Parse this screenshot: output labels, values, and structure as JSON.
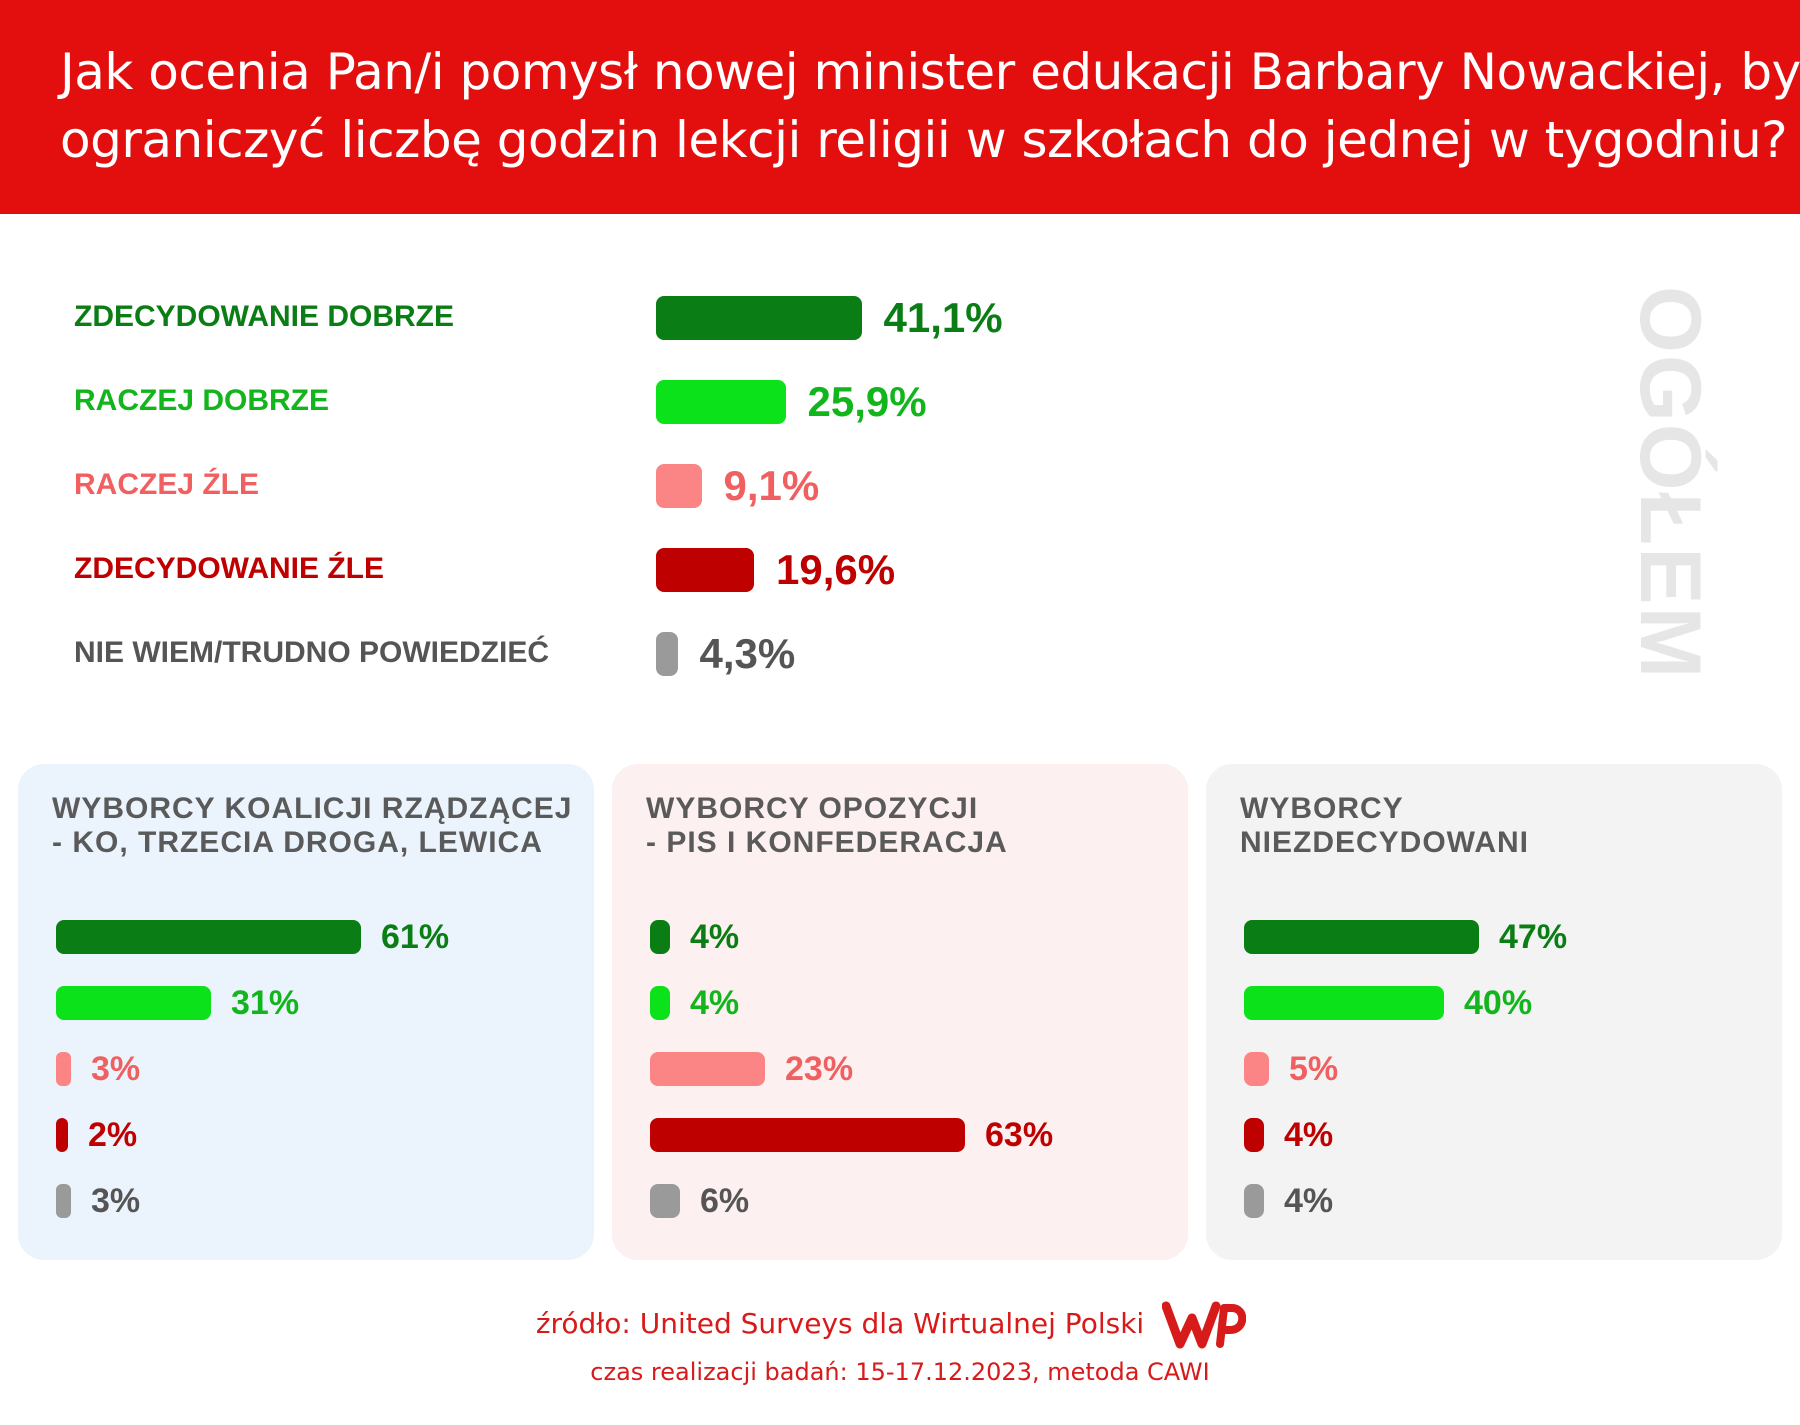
{
  "header": {
    "title_line1": "Jak ocenia Pan/i pomysł nowej minister edukacji Barbary Nowackiej, by",
    "title_line2": "ograniczyć liczbę godzin lekcji religii w szkołach do jednej w tygodniu?"
  },
  "side_label": "OGÓŁEM",
  "colors": {
    "header_bg": "#e30f0f",
    "zdecydowanie_dobrze": "#0a7d14",
    "raczej_dobrze": "#0ce21a",
    "raczej_zle": "#fb8585",
    "zdecydowanie_zle": "#be0000",
    "nie_wiem": "#9a9a9a",
    "panel_koalicja_bg": "#ebf4fd",
    "panel_opozycja_bg": "#fdf0f0",
    "panel_niezdecydowani_bg": "#f3f3f3"
  },
  "chart_data": [
    {
      "type": "bar",
      "orientation": "horizontal",
      "title": "OGÓŁEM",
      "categories": [
        "ZDECYDOWANIE DOBRZE",
        "RACZEJ DOBRZE",
        "RACZEJ ŹLE",
        "ZDECYDOWANIE ŹLE",
        "NIE WIEM/TRUDNO POWIEDZIEĆ"
      ],
      "values": [
        41.1,
        25.9,
        9.1,
        19.6,
        4.3
      ],
      "value_labels": [
        "41,1%",
        "25,9%",
        "9,1%",
        "19,6%",
        "4,3%"
      ],
      "unit": "%"
    },
    {
      "type": "bar",
      "orientation": "horizontal",
      "title_line1": "WYBORCY KOALICJI RZĄDZĄCEJ",
      "title_line2": "- KO, TRZECIA DROGA, LEWICA",
      "categories": [
        "ZDECYDOWANIE DOBRZE",
        "RACZEJ DOBRZE",
        "RACZEJ ŹLE",
        "ZDECYDOWANIE ŹLE",
        "NIE WIEM/TRUDNO POWIEDZIEĆ"
      ],
      "values": [
        61,
        31,
        3,
        2,
        3
      ],
      "value_labels": [
        "61%",
        "31%",
        "3%",
        "2%",
        "3%"
      ],
      "unit": "%"
    },
    {
      "type": "bar",
      "orientation": "horizontal",
      "title_line1": "WYBORCY OPOZYCJI",
      "title_line2": "- PIS I KONFEDERACJA",
      "categories": [
        "ZDECYDOWANIE DOBRZE",
        "RACZEJ DOBRZE",
        "RACZEJ ŹLE",
        "ZDECYDOWANIE ŹLE",
        "NIE WIEM/TRUDNO POWIEDZIEĆ"
      ],
      "values": [
        4,
        4,
        23,
        63,
        6
      ],
      "value_labels": [
        "4%",
        "4%",
        "23%",
        "63%",
        "6%"
      ],
      "unit": "%"
    },
    {
      "type": "bar",
      "orientation": "horizontal",
      "title_line1": "WYBORCY",
      "title_line2": "NIEZDECYDOWANI",
      "categories": [
        "ZDECYDOWANIE DOBRZE",
        "RACZEJ DOBRZE",
        "RACZEJ ŹLE",
        "ZDECYDOWANIE ŹLE",
        "NIE WIEM/TRUDNO POWIEDZIEĆ"
      ],
      "values": [
        47,
        40,
        5,
        4,
        4
      ],
      "value_labels": [
        "47%",
        "40%",
        "5%",
        "4%",
        "4%"
      ],
      "unit": "%"
    }
  ],
  "footer": {
    "source": "źródło: United Surveys dla Wirtualnej Polski",
    "method": "czas realizacji badań: 15-17.12.2023, metoda CAWI",
    "logo_text": "WP"
  }
}
